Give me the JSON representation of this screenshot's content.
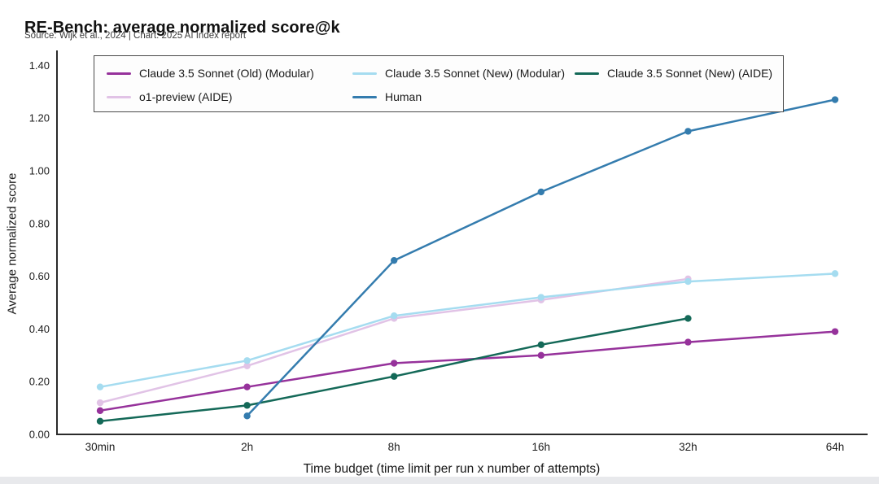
{
  "header": {
    "title": "RE-Bench: average normalized score@k",
    "source": "Source: Wijk et al., 2024 | Chart: 2025 AI Index report"
  },
  "chart_data": {
    "type": "line",
    "title": "RE-Bench: average normalized score@k",
    "source": "Source: Wijk et al., 2024 | Chart: 2025 AI Index report",
    "xlabel": "Time budget (time limit per run x number of attempts)",
    "ylabel": "Average normalized score",
    "categories": [
      "30min",
      "2h",
      "8h",
      "16h",
      "32h",
      "64h"
    ],
    "ylim": [
      0.0,
      1.4
    ],
    "yticks": [
      "0.00",
      "0.20",
      "0.40",
      "0.60",
      "0.80",
      "1.00",
      "1.20",
      "1.40"
    ],
    "grid": false,
    "legend_position": "top-inside",
    "series": [
      {
        "name": "Claude 3.5 Sonnet (Old) (Modular)",
        "color": "#96329b",
        "values": [
          0.09,
          0.18,
          0.27,
          0.3,
          0.35,
          0.39
        ]
      },
      {
        "name": "Claude 3.5 Sonnet (New) (Modular)",
        "color": "#a5dcf0",
        "values": [
          0.18,
          0.28,
          0.45,
          0.52,
          0.58,
          0.61
        ]
      },
      {
        "name": "Claude 3.5 Sonnet (New) (AIDE)",
        "color": "#146958",
        "values": [
          0.05,
          0.11,
          0.22,
          0.34,
          0.44,
          null
        ]
      },
      {
        "name": "o1-preview (AIDE)",
        "color": "#e1c3e6",
        "values": [
          0.12,
          0.26,
          0.44,
          0.51,
          0.59,
          null
        ]
      },
      {
        "name": "Human",
        "color": "#347cae",
        "values": [
          null,
          0.07,
          0.66,
          0.92,
          1.15,
          1.27
        ]
      }
    ],
    "colors": {
      "axis": "#2b2b2b",
      "tick_text": "#1c1c1c"
    }
  }
}
